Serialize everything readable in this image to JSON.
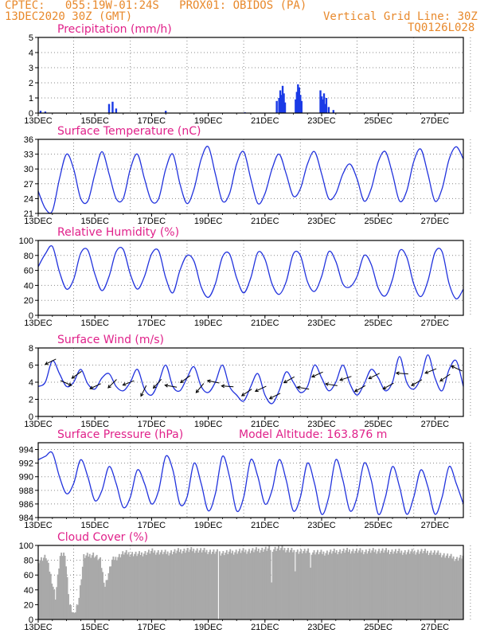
{
  "header": {
    "line1": "CPTEC:   055:19W-01:24S   PROX01: OBIDOS (PA)",
    "line2": "13DEC2020 30Z (GMT)",
    "right1": "Vertical Grid Line: 30Z",
    "right2": "TQ0126L028"
  },
  "colors": {
    "header": "#e8892c",
    "title": "#e0218a",
    "line": "#2233dd",
    "bar": "#1a3ae6",
    "cloud": "#a9a9a9",
    "grid": "#888888"
  },
  "chart_data": [
    {
      "type": "bar",
      "title": "Precipitation (mm/h)",
      "ylim": [
        0,
        5
      ],
      "yticks": [
        0,
        1,
        2,
        3,
        4,
        5
      ],
      "x_tick_labels": [
        "13DEC",
        "15DEC",
        "17DEC",
        "19DEC",
        "21DEC",
        "23DEC",
        "25DEC",
        "27DEC"
      ],
      "x_start_label": "13DEC",
      "x_hours_span": 360,
      "bars": [
        {
          "h": 2,
          "v": 0.15
        },
        {
          "h": 6,
          "v": 0.1
        },
        {
          "h": 60,
          "v": 0.6
        },
        {
          "h": 63,
          "v": 0.75
        },
        {
          "h": 66,
          "v": 0.3
        },
        {
          "h": 108,
          "v": 0.15
        },
        {
          "h": 175,
          "v": 0.05
        },
        {
          "h": 202,
          "v": 0.8
        },
        {
          "h": 204,
          "v": 1.0
        },
        {
          "h": 205,
          "v": 1.5
        },
        {
          "h": 206,
          "v": 1.2
        },
        {
          "h": 207,
          "v": 1.8
        },
        {
          "h": 208,
          "v": 1.3
        },
        {
          "h": 209,
          "v": 0.7
        },
        {
          "h": 218,
          "v": 0.9
        },
        {
          "h": 219,
          "v": 1.4
        },
        {
          "h": 220,
          "v": 1.9
        },
        {
          "h": 221,
          "v": 1.7
        },
        {
          "h": 222,
          "v": 1.2
        },
        {
          "h": 223,
          "v": 0.8
        },
        {
          "h": 239,
          "v": 1.5
        },
        {
          "h": 240,
          "v": 1.1
        },
        {
          "h": 241,
          "v": 0.9
        },
        {
          "h": 242,
          "v": 1.3
        },
        {
          "h": 243,
          "v": 0.6
        },
        {
          "h": 244,
          "v": 1.0
        },
        {
          "h": 246,
          "v": 0.4
        },
        {
          "h": 250,
          "v": 0.2
        }
      ]
    },
    {
      "type": "line",
      "title": "Surface Temperature (nC)",
      "ylim": [
        21,
        36
      ],
      "yticks": [
        21,
        24,
        27,
        30,
        33,
        36
      ],
      "x_tick_labels": [
        "13DEC",
        "15DEC",
        "17DEC",
        "19DEC",
        "21DEC",
        "23DEC",
        "25DEC",
        "27DEC"
      ],
      "x_hours_span": 360,
      "series": [
        {
          "x": [
            0,
            6,
            12,
            18,
            24,
            30,
            36,
            42,
            48,
            54,
            60,
            66,
            72,
            78,
            84,
            90,
            96,
            102,
            108,
            114,
            120,
            126,
            132,
            138,
            144,
            150,
            156,
            162,
            168,
            174,
            180,
            186,
            192,
            198,
            204,
            210,
            216,
            222,
            228,
            234,
            240,
            246,
            252,
            258,
            264,
            270,
            276,
            282,
            288,
            294,
            300,
            306,
            312,
            318,
            324,
            330,
            336,
            342,
            348,
            354,
            360
          ],
          "y": [
            25.5,
            22,
            21.5,
            28,
            33,
            30,
            24,
            23.5,
            29,
            33.5,
            29,
            24,
            24,
            30,
            33,
            28,
            23.5,
            24,
            30,
            33,
            27,
            23,
            26,
            32,
            34.5,
            29,
            23.5,
            25,
            31,
            33.5,
            28,
            23,
            25,
            30,
            33,
            29,
            24.5,
            26,
            31,
            33.5,
            29,
            24,
            25,
            29,
            31,
            28,
            23.5,
            26,
            31.5,
            33.5,
            29,
            23.5,
            25.5,
            31.5,
            34,
            29,
            23.5,
            26,
            32,
            34.5,
            32
          ]
        }
      ]
    },
    {
      "type": "line",
      "title": "Relative Humidity (%)",
      "ylim": [
        0,
        100
      ],
      "yticks": [
        0,
        20,
        40,
        60,
        80,
        100
      ],
      "x_tick_labels": [
        "13DEC",
        "15DEC",
        "17DEC",
        "19DEC",
        "21DEC",
        "23DEC",
        "25DEC",
        "27DEC"
      ],
      "x_hours_span": 360,
      "series": [
        {
          "x": [
            0,
            6,
            12,
            18,
            24,
            30,
            36,
            42,
            48,
            54,
            60,
            66,
            72,
            78,
            84,
            90,
            96,
            102,
            108,
            114,
            120,
            126,
            132,
            138,
            144,
            150,
            156,
            162,
            168,
            174,
            180,
            186,
            192,
            198,
            204,
            210,
            216,
            222,
            228,
            234,
            240,
            246,
            252,
            258,
            264,
            270,
            276,
            282,
            288,
            294,
            300,
            306,
            312,
            318,
            324,
            330,
            336,
            342,
            348,
            354,
            360
          ],
          "y": [
            65,
            82,
            92,
            58,
            35,
            48,
            83,
            87,
            55,
            33,
            52,
            85,
            88,
            55,
            35,
            52,
            82,
            86,
            50,
            30,
            60,
            80,
            72,
            38,
            24,
            42,
            78,
            82,
            50,
            30,
            50,
            84,
            75,
            42,
            28,
            45,
            82,
            80,
            45,
            32,
            52,
            85,
            72,
            42,
            38,
            52,
            80,
            68,
            36,
            26,
            48,
            86,
            78,
            42,
            25,
            46,
            84,
            85,
            42,
            22,
            35
          ]
        }
      ]
    },
    {
      "type": "line",
      "title": "Surface Wind (m/s)",
      "ylim": [
        0,
        8
      ],
      "yticks": [
        0,
        2,
        4,
        6,
        8
      ],
      "x_tick_labels": [
        "13DEC",
        "15DEC",
        "17DEC",
        "19DEC",
        "21DEC",
        "23DEC",
        "25DEC",
        "27DEC"
      ],
      "x_hours_span": 360,
      "series": [
        {
          "x": [
            0,
            6,
            12,
            18,
            24,
            30,
            36,
            42,
            48,
            54,
            60,
            66,
            72,
            78,
            84,
            90,
            96,
            102,
            108,
            114,
            120,
            126,
            132,
            138,
            144,
            150,
            156,
            162,
            168,
            174,
            180,
            186,
            192,
            198,
            204,
            210,
            216,
            222,
            228,
            234,
            240,
            246,
            252,
            258,
            264,
            270,
            276,
            282,
            288,
            294,
            300,
            306,
            312,
            318,
            324,
            330,
            336,
            342,
            348,
            354,
            360
          ],
          "y": [
            3.5,
            4,
            6.5,
            5,
            3.5,
            4,
            5.5,
            3.8,
            3.2,
            4.5,
            5,
            3.5,
            3,
            4,
            5.5,
            3.2,
            2.5,
            4,
            6,
            3.5,
            3,
            4.5,
            5.8,
            3.5,
            2.8,
            4,
            6,
            3.5,
            2.5,
            1.8,
            3.5,
            5,
            2.5,
            1.5,
            3,
            5.2,
            4,
            2.8,
            3.5,
            6,
            4.5,
            3,
            4,
            6,
            3.8,
            2.5,
            3.8,
            5.5,
            4.5,
            3,
            4,
            7,
            4,
            3.2,
            4.5,
            7.2,
            4.5,
            3,
            5.5,
            6.5,
            3.5
          ]
        }
      ],
      "arrows": [
        {
          "h": 12,
          "u": -1.6,
          "v": -0.8
        },
        {
          "h": 22,
          "u": 1.6,
          "v": -0.7
        },
        {
          "h": 34,
          "u": -1.4,
          "v": -1.0
        },
        {
          "h": 50,
          "u": -1.3,
          "v": -0.6
        },
        {
          "h": 64,
          "u": -1.0,
          "v": -1.0
        },
        {
          "h": 78,
          "u": -1.3,
          "v": -0.5
        },
        {
          "h": 90,
          "u": -0.6,
          "v": -1.2
        },
        {
          "h": 102,
          "u": -0.9,
          "v": -1.0
        },
        {
          "h": 114,
          "u": -1.2,
          "v": 0.2
        },
        {
          "h": 126,
          "u": -1.1,
          "v": -0.8
        },
        {
          "h": 138,
          "u": -0.9,
          "v": -1.1
        },
        {
          "h": 150,
          "u": -1.5,
          "v": 0.3
        },
        {
          "h": 162,
          "u": -1.4,
          "v": 0.1
        },
        {
          "h": 178,
          "u": -1.2,
          "v": -0.8
        },
        {
          "h": 190,
          "u": -1.5,
          "v": -0.7
        },
        {
          "h": 202,
          "u": -1.2,
          "v": -0.6
        },
        {
          "h": 214,
          "u": -1.4,
          "v": -0.8
        },
        {
          "h": 226,
          "u": -1.2,
          "v": 0.2
        },
        {
          "h": 238,
          "u": -1.1,
          "v": -0.5
        },
        {
          "h": 250,
          "u": -1.3,
          "v": 0.2
        },
        {
          "h": 262,
          "u": -1.2,
          "v": -0.4
        },
        {
          "h": 274,
          "u": -1.6,
          "v": -0.9
        },
        {
          "h": 286,
          "u": -1.2,
          "v": -0.6
        },
        {
          "h": 298,
          "u": -1.6,
          "v": -0.9
        },
        {
          "h": 310,
          "u": -1.3,
          "v": 0.1
        },
        {
          "h": 322,
          "u": -1.4,
          "v": -0.8
        },
        {
          "h": 334,
          "u": -1.5,
          "v": -0.6
        },
        {
          "h": 346,
          "u": -1.6,
          "v": -1.1
        },
        {
          "h": 356,
          "u": -1.1,
          "v": 0.5
        }
      ]
    },
    {
      "type": "line",
      "title": "Surface Pressure (hPa)",
      "subtitle": "Model Altitude: 163.876 m",
      "ylim": [
        984,
        995
      ],
      "yticks": [
        984,
        986,
        988,
        990,
        992,
        994
      ],
      "x_tick_labels": [
        "13DEC",
        "15DEC",
        "17DEC",
        "19DEC",
        "21DEC",
        "23DEC",
        "25DEC",
        "27DEC"
      ],
      "x_hours_span": 360,
      "series": [
        {
          "x": [
            0,
            6,
            12,
            18,
            24,
            30,
            36,
            42,
            48,
            54,
            60,
            66,
            72,
            78,
            84,
            90,
            96,
            102,
            108,
            114,
            120,
            126,
            132,
            138,
            144,
            150,
            156,
            162,
            168,
            174,
            180,
            186,
            192,
            198,
            204,
            210,
            216,
            222,
            228,
            234,
            240,
            246,
            252,
            258,
            264,
            270,
            276,
            282,
            288,
            294,
            300,
            306,
            312,
            318,
            324,
            330,
            336,
            342,
            348,
            354,
            360
          ],
          "y": [
            992.5,
            993,
            993.5,
            990,
            987.5,
            989,
            992.5,
            990,
            986.5,
            988,
            991.5,
            989,
            985.5,
            987,
            991,
            989,
            986,
            988,
            993,
            991,
            986,
            987,
            992,
            989,
            985,
            987.5,
            993,
            990,
            985,
            987,
            992.5,
            990,
            986,
            988,
            992.5,
            989.5,
            985,
            987,
            992,
            989,
            984.5,
            987,
            992.5,
            989.5,
            985,
            987,
            992,
            989.5,
            984.5,
            987,
            991.5,
            988.5,
            984.5,
            987,
            991,
            988.5,
            984.5,
            987,
            991.5,
            989,
            986
          ]
        }
      ]
    },
    {
      "type": "bar",
      "title": "Cloud Cover (%)",
      "ylim": [
        0,
        100
      ],
      "yticks": [
        0,
        20,
        40,
        60,
        80,
        100
      ],
      "x_tick_labels": [
        "13DEC",
        "15DEC",
        "17DEC",
        "19DEC",
        "21DEC",
        "23DEC",
        "25DEC",
        "27DEC"
      ],
      "x_hours_span": 360,
      "profile": [
        {
          "h": 0,
          "v": 80
        },
        {
          "h": 6,
          "v": 85
        },
        {
          "h": 10,
          "v": 60
        },
        {
          "h": 14,
          "v": 30
        },
        {
          "h": 18,
          "v": 85
        },
        {
          "h": 22,
          "v": 90
        },
        {
          "h": 26,
          "v": 20
        },
        {
          "h": 30,
          "v": 5
        },
        {
          "h": 34,
          "v": 30
        },
        {
          "h": 38,
          "v": 85
        },
        {
          "h": 46,
          "v": 88
        },
        {
          "h": 52,
          "v": 80
        },
        {
          "h": 56,
          "v": 45
        },
        {
          "h": 62,
          "v": 80
        },
        {
          "h": 72,
          "v": 90
        },
        {
          "h": 84,
          "v": 88
        },
        {
          "h": 96,
          "v": 92
        },
        {
          "h": 108,
          "v": 90
        },
        {
          "h": 120,
          "v": 93
        },
        {
          "h": 132,
          "v": 94
        },
        {
          "h": 144,
          "v": 92
        },
        {
          "h": 156,
          "v": 90
        },
        {
          "h": 168,
          "v": 92
        },
        {
          "h": 180,
          "v": 93
        },
        {
          "h": 192,
          "v": 95
        },
        {
          "h": 204,
          "v": 96
        },
        {
          "h": 216,
          "v": 93
        },
        {
          "h": 228,
          "v": 92
        },
        {
          "h": 240,
          "v": 90
        },
        {
          "h": 252,
          "v": 92
        },
        {
          "h": 264,
          "v": 93
        },
        {
          "h": 276,
          "v": 92
        },
        {
          "h": 288,
          "v": 93
        },
        {
          "h": 300,
          "v": 92
        },
        {
          "h": 312,
          "v": 91
        },
        {
          "h": 324,
          "v": 92
        },
        {
          "h": 336,
          "v": 90
        },
        {
          "h": 348,
          "v": 85
        },
        {
          "h": 354,
          "v": 82
        },
        {
          "h": 360,
          "v": 86
        }
      ],
      "gaps": [
        {
          "h": 152,
          "v": 0
        },
        {
          "h": 197,
          "v": 50
        },
        {
          "h": 217,
          "v": 65
        },
        {
          "h": 230,
          "v": 70
        }
      ]
    }
  ]
}
